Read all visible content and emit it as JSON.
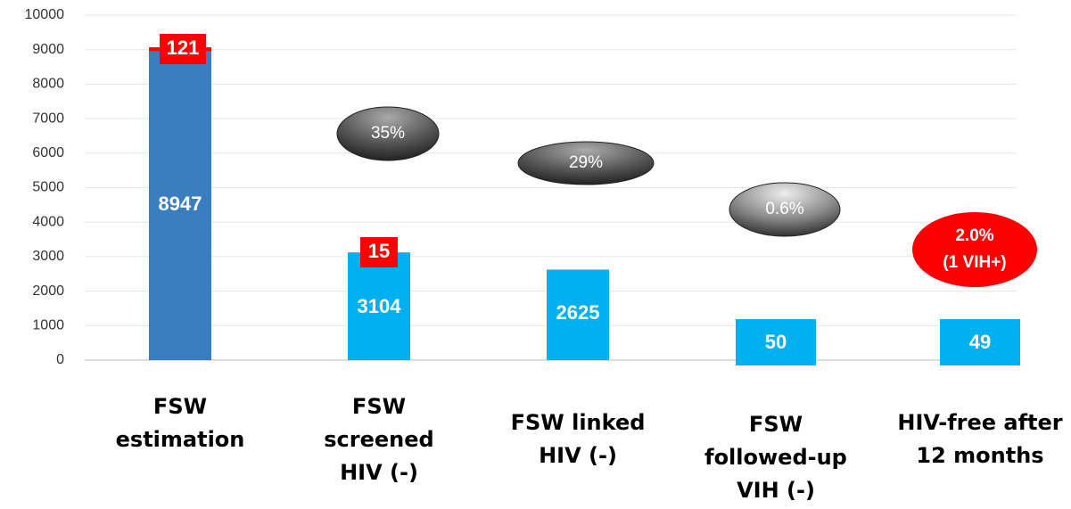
{
  "chart_data": {
    "type": "bar",
    "categories": [
      [
        "FSW",
        "estimation"
      ],
      [
        "FSW",
        "screened",
        "HIV (-)"
      ],
      [
        "FSW linked",
        "HIV (-)"
      ],
      [
        "FSW",
        "followed-up",
        "VIH (-)"
      ],
      [
        "HIV-free after",
        "12 months"
      ]
    ],
    "values": [
      8947,
      3104,
      2625,
      50,
      49
    ],
    "colors": [
      "#3a7ebf",
      "#00b0f0",
      "#00b0f0",
      "#00b0f0",
      "#00b0f0"
    ],
    "hiv_positive": {
      "values": [
        121,
        15
      ],
      "color": "#ff0000"
    },
    "annotations": [
      [
        "35%"
      ],
      [
        "29%"
      ],
      [
        "0.6%"
      ],
      [
        "2.0%",
        "(1 VIH+)"
      ]
    ],
    "ylim": [
      0,
      10000
    ],
    "yticks": [
      0,
      1000,
      2000,
      3000,
      4000,
      5000,
      6000,
      7000,
      8000,
      9000,
      10000
    ],
    "grid": true
  }
}
